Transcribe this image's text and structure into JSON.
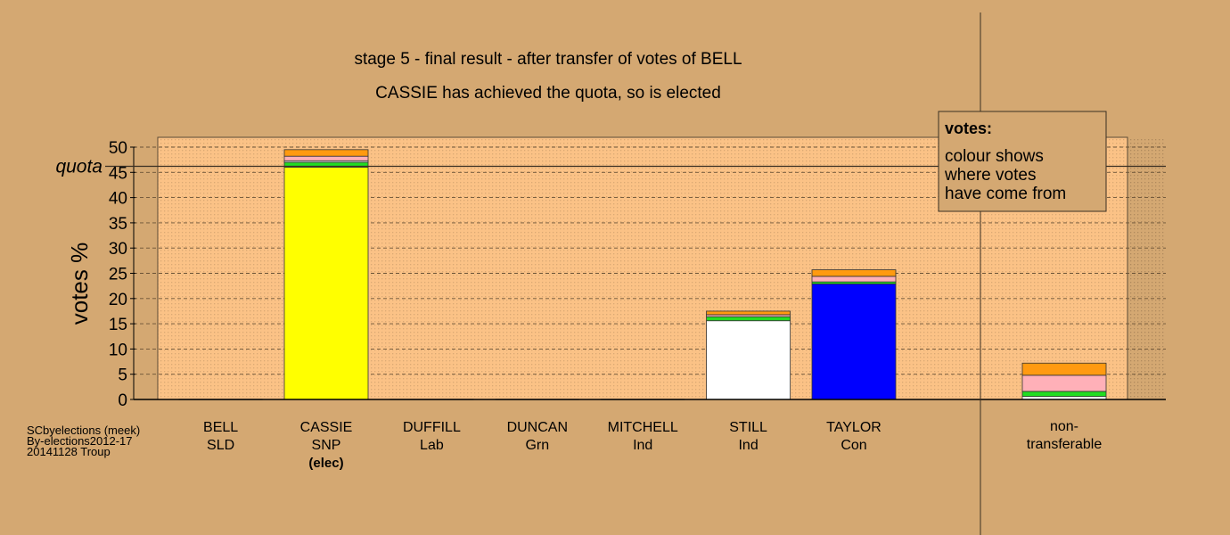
{
  "chart_data": {
    "type": "bar",
    "stacked": true,
    "title": "stage 5 - final result - after transfer of votes of BELL",
    "subtitle": "CASSIE has achieved the quota, so is elected",
    "ylabel": "votes %",
    "ylim": [
      0,
      50
    ],
    "yticks": [
      0,
      5,
      10,
      15,
      20,
      25,
      30,
      35,
      40,
      45,
      50
    ],
    "quota_label": "quota",
    "quota": 46.2,
    "grid": true,
    "legend": {
      "title": "votes:",
      "lines": [
        "colour shows",
        "where votes",
        "have come from"
      ],
      "placement": "top-right"
    },
    "categories": [
      {
        "name": "BELL",
        "party": "SLD",
        "note": ""
      },
      {
        "name": "CASSIE",
        "party": "SNP",
        "note": "(elec)"
      },
      {
        "name": "DUFFILL",
        "party": "Lab",
        "note": ""
      },
      {
        "name": "DUNCAN",
        "party": "Grn",
        "note": ""
      },
      {
        "name": "MITCHELL",
        "party": "Ind",
        "note": ""
      },
      {
        "name": "STILL",
        "party": "Ind",
        "note": ""
      },
      {
        "name": "TAYLOR",
        "party": "Con",
        "note": ""
      }
    ],
    "nontransferable_label": [
      "non-",
      "transferable"
    ],
    "stacks": [
      [],
      [
        {
          "value": 46.0,
          "color": "#ffff00"
        },
        {
          "value": 1.0,
          "color": "#22dd22"
        },
        {
          "value": 0.3,
          "color": "#ffffff"
        },
        {
          "value": 0.9,
          "color": "#ffb0b8"
        },
        {
          "value": 1.3,
          "color": "#ff9a10"
        }
      ],
      [],
      [],
      [],
      [
        {
          "value": 15.6,
          "color": "#ffffff"
        },
        {
          "value": 0.8,
          "color": "#22dd22"
        },
        {
          "value": 0.4,
          "color": "#ffb0b8"
        },
        {
          "value": 0.7,
          "color": "#ff9a10"
        }
      ],
      [
        {
          "value": 22.9,
          "color": "#0000ff"
        },
        {
          "value": 0.4,
          "color": "#22dd22"
        },
        {
          "value": 1.1,
          "color": "#ffb0b8"
        },
        {
          "value": 1.3,
          "color": "#ff9a10"
        }
      ]
    ],
    "nontransferable": [
      {
        "value": 0.6,
        "color": "#ffffff"
      },
      {
        "value": 1.0,
        "color": "#22dd22"
      },
      {
        "value": 3.2,
        "color": "#ffb0b8"
      },
      {
        "value": 2.4,
        "color": "#ff9a10"
      }
    ]
  },
  "source": [
    "SCbyelections (meek)",
    "By-elections2012-17",
    "20141128 Troup"
  ]
}
